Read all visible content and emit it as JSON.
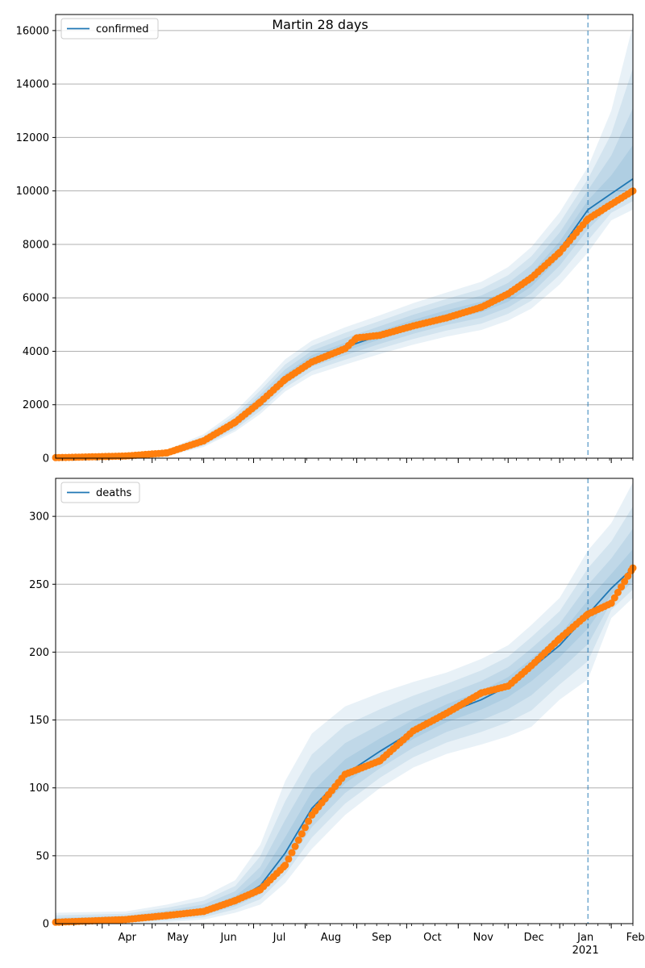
{
  "title": "Martin 28 days",
  "x_months": [
    "Apr",
    "May",
    "Jun",
    "Jul",
    "Aug",
    "Sep",
    "Oct",
    "Nov",
    "Dec",
    "Jan",
    "Feb"
  ],
  "x_year_label": "2021",
  "forecast_start": "2021-01-18",
  "colors": {
    "model": "#1f77b4",
    "observed": "#ff7f0e",
    "band": "#aec7e8",
    "grid": "#b0b0b0"
  },
  "chart_data": [
    {
      "type": "line",
      "legend": "confirmed",
      "legend_position": "top-left",
      "grid": "y",
      "xlim": [
        "2020-03-04",
        "2021-02-14"
      ],
      "ylim": [
        0,
        16600
      ],
      "yticks": [
        0,
        2000,
        4000,
        6000,
        8000,
        10000,
        12000,
        14000,
        16000
      ],
      "model": [
        [
          "2020-03-04",
          0
        ],
        [
          "2020-04-15",
          60
        ],
        [
          "2020-05-10",
          180
        ],
        [
          "2020-06-01",
          600
        ],
        [
          "2020-06-20",
          1300
        ],
        [
          "2020-07-05",
          2100
        ],
        [
          "2020-07-20",
          3000
        ],
        [
          "2020-08-05",
          3700
        ],
        [
          "2020-08-25",
          4150
        ],
        [
          "2020-09-15",
          4600
        ],
        [
          "2020-10-05",
          5000
        ],
        [
          "2020-10-25",
          5350
        ],
        [
          "2020-11-15",
          5650
        ],
        [
          "2020-12-01",
          6050
        ],
        [
          "2020-12-15",
          6650
        ],
        [
          "2021-01-01",
          7800
        ],
        [
          "2021-01-18",
          9300
        ],
        [
          "2021-02-01",
          9900
        ],
        [
          "2021-02-14",
          10450
        ]
      ],
      "observed": [
        [
          "2020-03-04",
          20
        ],
        [
          "2020-04-15",
          80
        ],
        [
          "2020-05-10",
          200
        ],
        [
          "2020-06-01",
          650
        ],
        [
          "2020-06-20",
          1350
        ],
        [
          "2020-07-05",
          2100
        ],
        [
          "2020-07-20",
          2950
        ],
        [
          "2020-08-05",
          3600
        ],
        [
          "2020-08-25",
          4100
        ],
        [
          "2020-09-01",
          4500
        ],
        [
          "2020-09-15",
          4600
        ],
        [
          "2020-10-05",
          4950
        ],
        [
          "2020-10-25",
          5250
        ],
        [
          "2020-11-15",
          5650
        ],
        [
          "2020-12-01",
          6150
        ],
        [
          "2020-12-15",
          6750
        ],
        [
          "2021-01-01",
          7700
        ],
        [
          "2021-01-18",
          8950
        ],
        [
          "2021-02-01",
          9500
        ],
        [
          "2021-02-14",
          10000
        ]
      ],
      "band_outer": [
        [
          0,
          0
        ],
        [
          0,
          120
        ],
        [
          80,
          320
        ],
        [
          420,
          900
        ],
        [
          1000,
          1750
        ],
        [
          1650,
          2700
        ],
        [
          2500,
          3700
        ],
        [
          3100,
          4400
        ],
        [
          3500,
          4900
        ],
        [
          3900,
          5350
        ],
        [
          4250,
          5800
        ],
        [
          4550,
          6200
        ],
        [
          4800,
          6600
        ],
        [
          5150,
          7150
        ],
        [
          5600,
          7900
        ],
        [
          6500,
          9200
        ],
        [
          7700,
          10900
        ],
        [
          8900,
          13000
        ],
        [
          9300,
          16200
        ]
      ]
    },
    {
      "type": "line",
      "legend": "deaths",
      "legend_position": "top-left",
      "grid": "y",
      "xlim": [
        "2020-03-04",
        "2021-02-14"
      ],
      "ylim": [
        0,
        328
      ],
      "yticks": [
        0,
        50,
        100,
        150,
        200,
        250,
        300
      ],
      "model": [
        [
          "2020-03-04",
          1
        ],
        [
          "2020-04-15",
          3
        ],
        [
          "2020-05-10",
          6
        ],
        [
          "2020-06-01",
          9
        ],
        [
          "2020-06-20",
          17
        ],
        [
          "2020-07-05",
          28
        ],
        [
          "2020-07-20",
          52
        ],
        [
          "2020-08-05",
          85
        ],
        [
          "2020-08-25",
          110
        ],
        [
          "2020-09-15",
          127
        ],
        [
          "2020-10-05",
          142
        ],
        [
          "2020-10-25",
          155
        ],
        [
          "2020-11-15",
          165
        ],
        [
          "2020-12-01",
          175
        ],
        [
          "2020-12-15",
          188
        ],
        [
          "2021-01-01",
          205
        ],
        [
          "2021-01-18",
          228
        ],
        [
          "2021-02-01",
          247
        ],
        [
          "2021-02-14",
          262
        ]
      ],
      "observed": [
        [
          "2020-03-04",
          1
        ],
        [
          "2020-04-15",
          3
        ],
        [
          "2020-05-10",
          6
        ],
        [
          "2020-06-01",
          9
        ],
        [
          "2020-06-20",
          17
        ],
        [
          "2020-07-05",
          25
        ],
        [
          "2020-07-20",
          43
        ],
        [
          "2020-08-05",
          80
        ],
        [
          "2020-08-25",
          110
        ],
        [
          "2020-09-15",
          120
        ],
        [
          "2020-10-05",
          142
        ],
        [
          "2020-10-25",
          155
        ],
        [
          "2020-11-15",
          170
        ],
        [
          "2020-12-01",
          175
        ],
        [
          "2020-12-15",
          190
        ],
        [
          "2021-01-01",
          210
        ],
        [
          "2021-01-18",
          228
        ],
        [
          "2021-02-01",
          236
        ],
        [
          "2021-02-14",
          262
        ]
      ],
      "band_outer": [
        [
          0,
          8
        ],
        [
          0,
          9
        ],
        [
          1,
          14
        ],
        [
          3,
          20
        ],
        [
          8,
          32
        ],
        [
          14,
          58
        ],
        [
          30,
          105
        ],
        [
          55,
          140
        ],
        [
          80,
          160
        ],
        [
          100,
          170
        ],
        [
          115,
          178
        ],
        [
          125,
          185
        ],
        [
          132,
          195
        ],
        [
          138,
          205
        ],
        [
          145,
          220
        ],
        [
          165,
          240
        ],
        [
          180,
          275
        ],
        [
          225,
          295
        ],
        [
          240,
          325
        ]
      ]
    }
  ]
}
